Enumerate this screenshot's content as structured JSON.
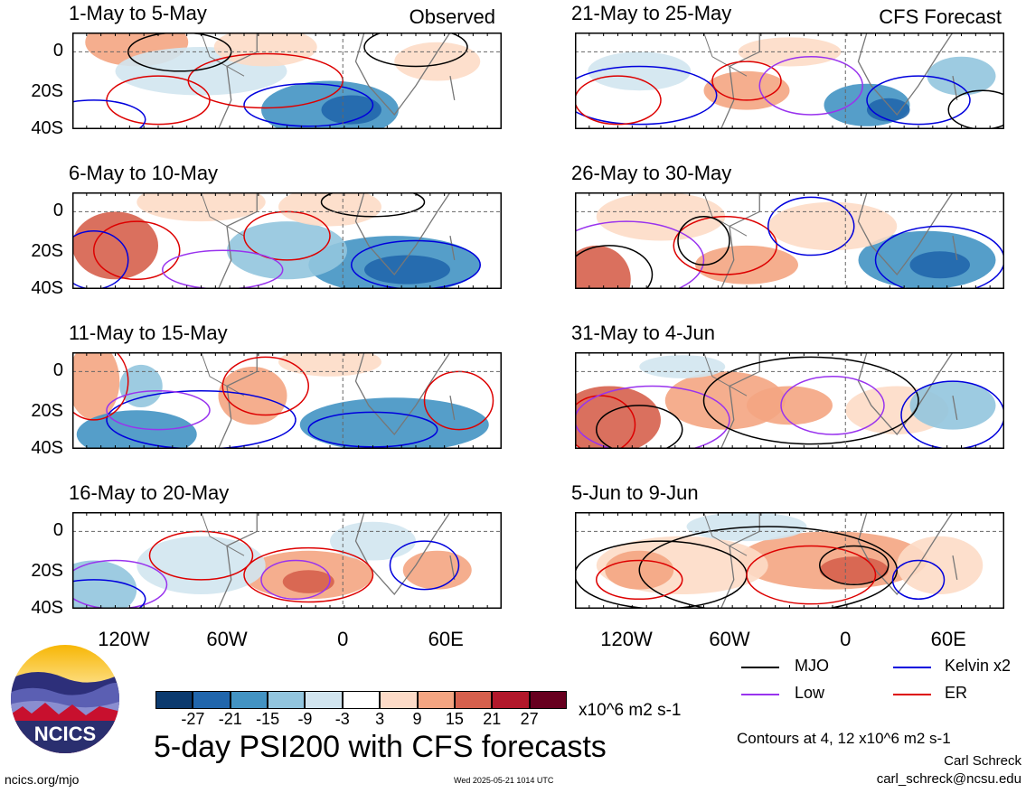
{
  "panels_left": [
    {
      "title": "1-May to 5-May",
      "tag": "Observed"
    },
    {
      "title": "6-May to 10-May",
      "tag": ""
    },
    {
      "title": "11-May to 15-May",
      "tag": ""
    },
    {
      "title": "16-May to 20-May",
      "tag": ""
    }
  ],
  "panels_right": [
    {
      "title": "21-May to 25-May",
      "tag": "CFS Forecast"
    },
    {
      "title": "26-May to 30-May",
      "tag": ""
    },
    {
      "title": "31-May to 4-Jun",
      "tag": ""
    },
    {
      "title": "5-Jun to 9-Jun",
      "tag": ""
    }
  ],
  "lat_labels": [
    "0",
    "20S",
    "40S"
  ],
  "lon_labels": [
    "120W",
    "60W",
    "0",
    "60E"
  ],
  "legend": {
    "mjo": "MJO",
    "kelvin": "Kelvin x2",
    "low": "Low",
    "er": "ER",
    "colors": {
      "mjo": "#000000",
      "kelvin": "#0000dd",
      "low": "#9933ee",
      "er": "#dd0000"
    }
  },
  "colorbar": {
    "ticks": [
      "-27",
      "-21",
      "-15",
      "-9",
      "-3",
      "3",
      "9",
      "15",
      "21",
      "27"
    ],
    "units": "x10^6 m2 s-1",
    "colors": [
      "#0b3a6e",
      "#2166ac",
      "#4393c3",
      "#92c5de",
      "#d1e5f0",
      "#ffffff",
      "#fddbc7",
      "#f4a582",
      "#d6604d",
      "#b2182b",
      "#67001f"
    ]
  },
  "main_title": "5-day PSI200 with CFS forecasts",
  "contours_note": "Contours at 4, 12 x10^6 m2 s-1",
  "author": "Carl Schreck",
  "email": "carl_schreck@ncsu.edu",
  "site": "ncics.org/mjo",
  "timestamp": "Wed 2025-05-21 1014 UTC",
  "logo_text": "NCICS"
}
